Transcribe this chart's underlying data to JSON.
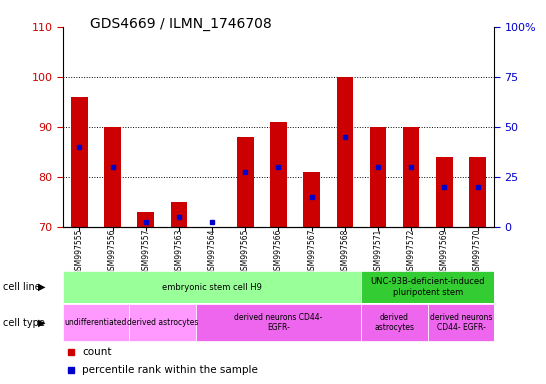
{
  "title": "GDS4669 / ILMN_1746708",
  "samples": [
    "GSM997555",
    "GSM997556",
    "GSM997557",
    "GSM997563",
    "GSM997564",
    "GSM997565",
    "GSM997566",
    "GSM997567",
    "GSM997568",
    "GSM997571",
    "GSM997572",
    "GSM997569",
    "GSM997570"
  ],
  "count_values": [
    96,
    90,
    73,
    75,
    70,
    88,
    91,
    81,
    100,
    90,
    90,
    84,
    84
  ],
  "percentile_left_values": [
    86,
    82,
    71,
    72,
    71,
    81,
    82,
    76,
    88,
    82,
    82,
    78,
    78
  ],
  "ylim_left": [
    70,
    110
  ],
  "ylim_right": [
    0,
    100
  ],
  "yticks_left": [
    70,
    80,
    90,
    100,
    110
  ],
  "yticks_right": [
    0,
    25,
    50,
    75,
    100
  ],
  "yticklabels_right": [
    "0",
    "25",
    "50",
    "75",
    "100%"
  ],
  "bar_color": "#cc0000",
  "dot_color": "#0000cc",
  "bar_width": 0.5,
  "cell_line_groups": [
    {
      "label": "embryonic stem cell H9",
      "start": 0,
      "end": 8,
      "color": "#99ff99"
    },
    {
      "label": "UNC-93B-deficient-induced\npluripotent stem",
      "start": 9,
      "end": 12,
      "color": "#33cc33"
    }
  ],
  "cell_type_groups": [
    {
      "label": "undifferentiated",
      "start": 0,
      "end": 1,
      "color": "#ff99ff"
    },
    {
      "label": "derived astrocytes",
      "start": 2,
      "end": 3,
      "color": "#ff99ff"
    },
    {
      "label": "derived neurons CD44-\nEGFR-",
      "start": 4,
      "end": 8,
      "color": "#ee66ee"
    },
    {
      "label": "derived\nastrocytes",
      "start": 9,
      "end": 10,
      "color": "#ee66ee"
    },
    {
      "label": "derived neurons\nCD44- EGFR-",
      "start": 11,
      "end": 12,
      "color": "#ee66ee"
    }
  ],
  "legend_labels": [
    "count",
    "percentile rank within the sample"
  ],
  "left_tick_color": "#cc0000",
  "right_tick_color": "#0000cc",
  "xtick_bg_color": "#cccccc"
}
